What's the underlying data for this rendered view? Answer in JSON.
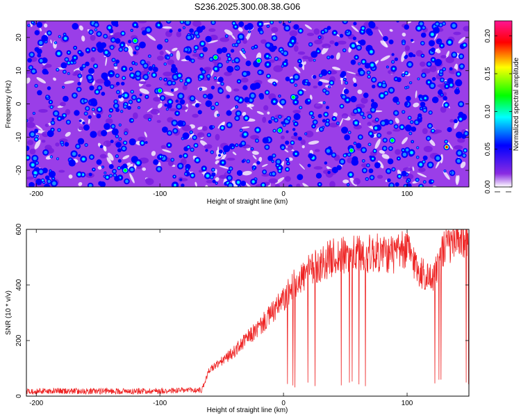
{
  "title": "S236.2025.300.08.38.G06",
  "chart_data": [
    {
      "type": "heatmap",
      "xlabel": "Height of straight line (km)",
      "ylabel": "Frequency (Hz)",
      "xlim": [
        -208,
        150
      ],
      "ylim": [
        -25,
        25
      ],
      "x_ticks": [
        -200,
        -100,
        0,
        100
      ],
      "y_ticks": [
        -20,
        -10,
        0,
        10,
        20
      ],
      "colorbar": {
        "label": "Normalized spectral amplitude",
        "range": [
          0,
          0.22
        ],
        "ticks": [
          "0.00",
          "0.05",
          "0.10",
          "0.15",
          "0.20"
        ],
        "colors": [
          "#ffffff",
          "#8a2be2",
          "#0000ff",
          "#00ffff",
          "#00ff00",
          "#ffff00",
          "#ff0000",
          "#ff1493"
        ]
      },
      "grid": false
    },
    {
      "type": "line",
      "xlabel": "Height of straight line (km)",
      "ylabel": "SNR (10 * v/v)",
      "xlim": [
        -208,
        150
      ],
      "ylim": [
        0,
        600
      ],
      "x_ticks": [
        -200,
        -100,
        0,
        100
      ],
      "y_ticks": [
        0,
        200,
        400,
        600
      ],
      "line_color": "#ee2222",
      "grid": false,
      "series": [
        {
          "x": [
            -208,
            -180,
            -150,
            -120,
            -90,
            -66,
            -60,
            -50,
            -40,
            -30,
            -20,
            -10,
            0,
            10,
            20,
            30,
            40,
            50,
            60,
            70,
            80,
            90,
            100,
            110,
            120,
            130,
            140,
            150
          ],
          "values": [
            18,
            18,
            18,
            18,
            20,
            22,
            95,
            125,
            160,
            205,
            245,
            295,
            345,
            410,
            445,
            475,
            500,
            505,
            510,
            512,
            515,
            508,
            530,
            450,
            420,
            530,
            560,
            570
          ]
        }
      ]
    }
  ]
}
